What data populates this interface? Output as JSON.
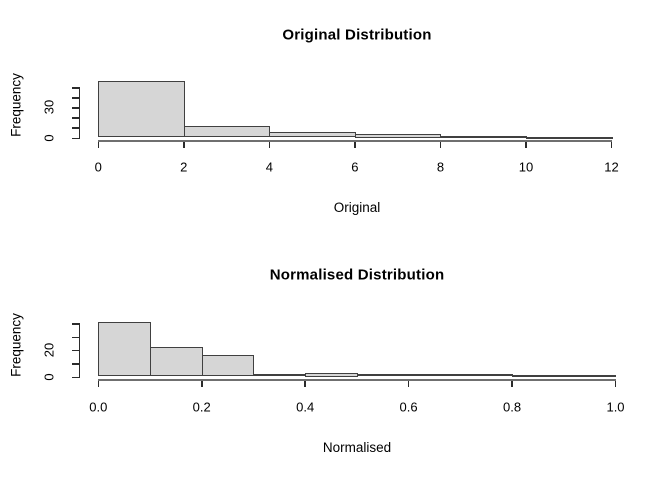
{
  "page": {
    "background_color": "#ffffff",
    "text_color": "#000000",
    "bar_fill_color": "#d6d6d6",
    "bar_border_color": "#404040",
    "axis_color": "#2b2b2b"
  },
  "chart_data": [
    {
      "type": "bar",
      "subtype": "histogram",
      "title": "Original Distribution",
      "xlabel": "Original",
      "ylabel": "Frequency",
      "bins": {
        "start": 0,
        "width": 2,
        "end": 12
      },
      "counts": [
        56,
        11,
        5,
        4,
        2,
        1
      ],
      "xlim": [
        0,
        12
      ],
      "ylim": [
        0,
        56
      ],
      "x_ticks": [
        {
          "value": 0,
          "label": "0"
        },
        {
          "value": 2,
          "label": "2"
        },
        {
          "value": 4,
          "label": "4"
        },
        {
          "value": 6,
          "label": "6"
        },
        {
          "value": 8,
          "label": "8"
        },
        {
          "value": 10,
          "label": "10"
        },
        {
          "value": 12,
          "label": "12"
        }
      ],
      "y_ticks": [
        {
          "value": 0,
          "label": "0"
        },
        {
          "value": 10,
          "label": ""
        },
        {
          "value": 20,
          "label": ""
        },
        {
          "value": 30,
          "label": "30"
        },
        {
          "value": 40,
          "label": ""
        },
        {
          "value": 50,
          "label": ""
        }
      ],
      "grid": false,
      "legend": null
    },
    {
      "type": "bar",
      "subtype": "histogram",
      "title": "Normalised Distribution",
      "xlabel": "Normalised",
      "ylabel": "Frequency",
      "bins": {
        "start": 0,
        "width": 0.1,
        "end": 1
      },
      "counts": [
        41,
        22,
        16,
        2,
        3,
        2,
        2,
        2,
        1,
        1
      ],
      "xlim": [
        0,
        1
      ],
      "ylim": [
        0,
        41
      ],
      "x_ticks": [
        {
          "value": 0,
          "label": "0.0"
        },
        {
          "value": 0.2,
          "label": "0.2"
        },
        {
          "value": 0.4,
          "label": "0.4"
        },
        {
          "value": 0.6,
          "label": "0.6"
        },
        {
          "value": 0.8,
          "label": "0.8"
        },
        {
          "value": 1,
          "label": "1.0"
        }
      ],
      "y_ticks": [
        {
          "value": 0,
          "label": "0"
        },
        {
          "value": 10,
          "label": ""
        },
        {
          "value": 20,
          "label": "20"
        },
        {
          "value": 30,
          "label": ""
        },
        {
          "value": 40,
          "label": ""
        }
      ],
      "grid": false,
      "legend": null
    }
  ]
}
